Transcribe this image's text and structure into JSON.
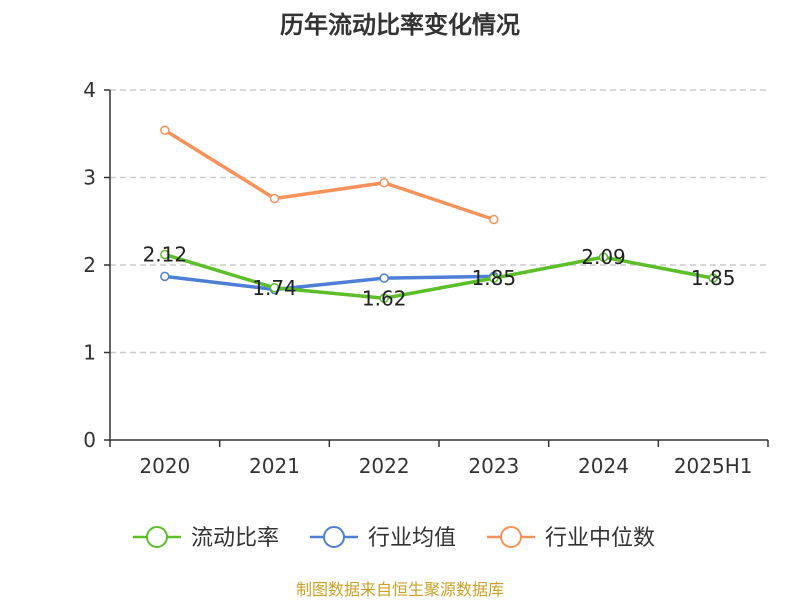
{
  "chart_data": {
    "type": "line",
    "title": "历年流动比率变化情况",
    "categories": [
      "2020",
      "2021",
      "2022",
      "2023",
      "2024",
      "2025H1"
    ],
    "y_ticks": [
      "0",
      "1",
      "2",
      "3",
      "4"
    ],
    "ylim": [
      0,
      4
    ],
    "grid": true,
    "legend_position": "bottom",
    "series": [
      {
        "name": "流动比率",
        "color": "#5cbf2a",
        "values": [
          2.12,
          1.74,
          1.62,
          1.85,
          2.09,
          1.85
        ],
        "labels": [
          "2.12",
          "1.74",
          "1.62",
          "1.85",
          "2.09",
          "1.85"
        ]
      },
      {
        "name": "行业均值",
        "color": "#4e7fd6",
        "values": [
          1.87,
          1.72,
          1.85,
          1.87,
          null,
          null
        ]
      },
      {
        "name": "行业中位数",
        "color": "#f7925b",
        "values": [
          3.54,
          2.76,
          2.94,
          2.52,
          null,
          null
        ]
      }
    ],
    "source": "制图数据来自恒生聚源数据库"
  }
}
